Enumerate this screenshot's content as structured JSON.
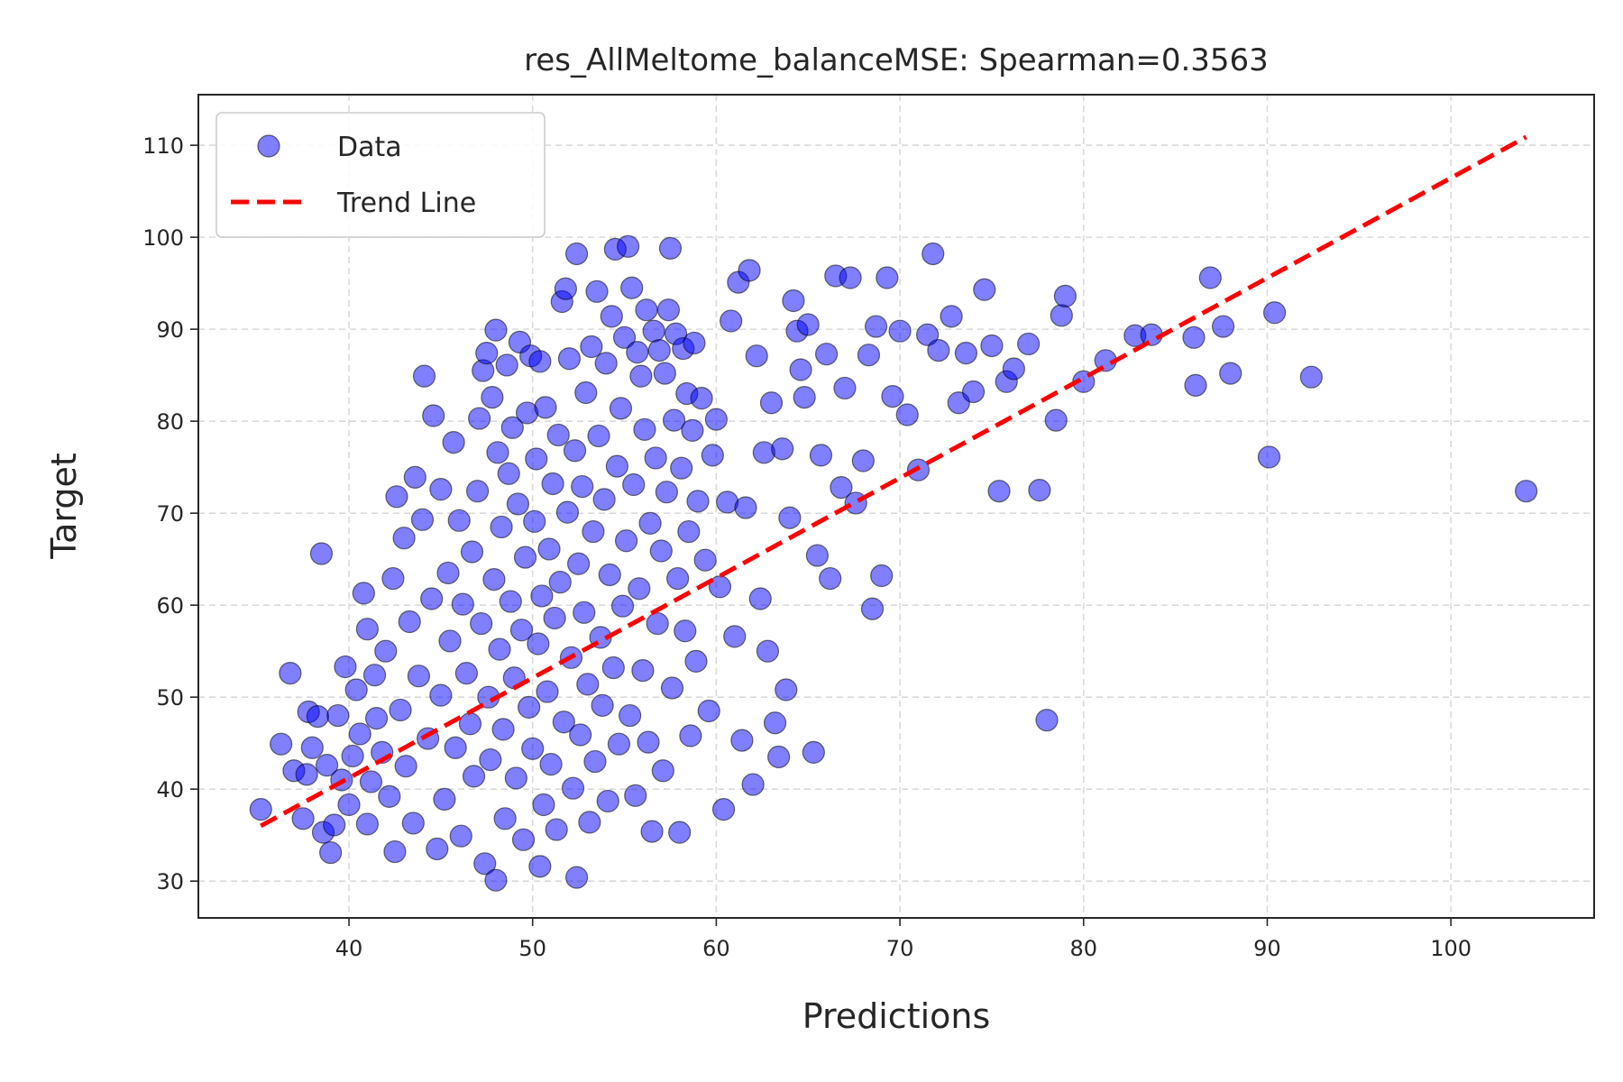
{
  "chart_data": {
    "type": "scatter",
    "title": "res_AllMeltome_balanceMSE: Spearman=0.3563",
    "xlabel": "Predictions",
    "ylabel": "Target",
    "xlim": [
      31.8,
      107.8
    ],
    "ylim": [
      26.0,
      115.5
    ],
    "xticks": [
      40,
      50,
      60,
      70,
      80,
      90,
      100
    ],
    "yticks": [
      30,
      40,
      50,
      60,
      70,
      80,
      90,
      100,
      110
    ],
    "grid": true,
    "legend_position": "top-left",
    "legend": [
      {
        "label": "Data",
        "kind": "marker"
      },
      {
        "label": "Trend Line",
        "kind": "dashed-line"
      }
    ],
    "colors": {
      "points": "#0000ff",
      "point_edge": "#000000",
      "trend": "#ff0000"
    },
    "trend_line": {
      "x": [
        35.2,
        104.1
      ],
      "y": [
        36.0,
        110.9
      ]
    },
    "series": [
      {
        "name": "Data",
        "points": [
          [
            35.2,
            37.8
          ],
          [
            36.3,
            44.9
          ],
          [
            36.8,
            52.6
          ],
          [
            37.0,
            42.0
          ],
          [
            37.5,
            36.8
          ],
          [
            37.7,
            41.6
          ],
          [
            37.8,
            48.4
          ],
          [
            38.0,
            44.5
          ],
          [
            38.3,
            47.9
          ],
          [
            38.5,
            65.6
          ],
          [
            38.6,
            35.3
          ],
          [
            38.8,
            42.6
          ],
          [
            39.0,
            33.1
          ],
          [
            39.2,
            36.1
          ],
          [
            39.4,
            48.0
          ],
          [
            39.6,
            41.0
          ],
          [
            39.8,
            53.3
          ],
          [
            40.0,
            38.3
          ],
          [
            40.2,
            43.6
          ],
          [
            40.4,
            50.8
          ],
          [
            40.6,
            46.0
          ],
          [
            40.8,
            61.3
          ],
          [
            41.0,
            36.2
          ],
          [
            41.0,
            57.4
          ],
          [
            41.2,
            40.8
          ],
          [
            41.4,
            52.4
          ],
          [
            41.5,
            47.7
          ],
          [
            41.8,
            44.0
          ],
          [
            42.0,
            55.0
          ],
          [
            42.2,
            39.2
          ],
          [
            42.4,
            62.9
          ],
          [
            42.5,
            33.2
          ],
          [
            42.6,
            71.8
          ],
          [
            42.8,
            48.6
          ],
          [
            43.0,
            67.3
          ],
          [
            43.1,
            42.5
          ],
          [
            43.3,
            58.2
          ],
          [
            43.5,
            36.3
          ],
          [
            43.6,
            73.9
          ],
          [
            43.8,
            52.3
          ],
          [
            44.0,
            69.3
          ],
          [
            44.1,
            84.9
          ],
          [
            44.3,
            45.5
          ],
          [
            44.5,
            60.7
          ],
          [
            44.6,
            80.6
          ],
          [
            44.8,
            33.5
          ],
          [
            45.0,
            72.6
          ],
          [
            45.0,
            50.2
          ],
          [
            45.2,
            38.9
          ],
          [
            45.4,
            63.5
          ],
          [
            45.5,
            56.1
          ],
          [
            45.7,
            77.7
          ],
          [
            45.8,
            44.5
          ],
          [
            46.0,
            69.2
          ],
          [
            46.1,
            34.9
          ],
          [
            46.2,
            60.1
          ],
          [
            46.4,
            52.6
          ],
          [
            46.6,
            47.1
          ],
          [
            46.7,
            65.8
          ],
          [
            46.8,
            41.4
          ],
          [
            47.0,
            72.4
          ],
          [
            47.1,
            80.3
          ],
          [
            47.2,
            58.0
          ],
          [
            47.3,
            85.5
          ],
          [
            47.4,
            31.9
          ],
          [
            47.5,
            87.4
          ],
          [
            47.6,
            50.0
          ],
          [
            47.7,
            43.2
          ],
          [
            47.8,
            82.6
          ],
          [
            47.9,
            62.8
          ],
          [
            48.0,
            89.9
          ],
          [
            48.0,
            30.1
          ],
          [
            48.1,
            76.6
          ],
          [
            48.2,
            55.2
          ],
          [
            48.3,
            68.5
          ],
          [
            48.4,
            46.5
          ],
          [
            48.5,
            36.8
          ],
          [
            48.6,
            86.1
          ],
          [
            48.7,
            74.3
          ],
          [
            48.8,
            60.4
          ],
          [
            48.9,
            79.3
          ],
          [
            49.0,
            52.1
          ],
          [
            49.1,
            41.2
          ],
          [
            49.2,
            71.0
          ],
          [
            49.3,
            88.6
          ],
          [
            49.4,
            57.3
          ],
          [
            49.5,
            34.5
          ],
          [
            49.6,
            65.2
          ],
          [
            49.7,
            80.9
          ],
          [
            49.8,
            48.9
          ],
          [
            49.9,
            87.1
          ],
          [
            50.0,
            44.4
          ],
          [
            50.1,
            69.1
          ],
          [
            50.2,
            75.9
          ],
          [
            50.3,
            55.8
          ],
          [
            50.4,
            31.6
          ],
          [
            50.4,
            86.5
          ],
          [
            50.5,
            61.0
          ],
          [
            50.6,
            38.3
          ],
          [
            50.7,
            81.5
          ],
          [
            50.8,
            50.6
          ],
          [
            50.9,
            66.1
          ],
          [
            51.0,
            42.7
          ],
          [
            51.1,
            73.2
          ],
          [
            51.2,
            58.6
          ],
          [
            51.3,
            35.6
          ],
          [
            51.4,
            78.5
          ],
          [
            51.5,
            62.5
          ],
          [
            51.6,
            93.0
          ],
          [
            51.7,
            47.3
          ],
          [
            51.8,
            94.4
          ],
          [
            51.9,
            70.1
          ],
          [
            52.0,
            86.8
          ],
          [
            52.1,
            54.3
          ],
          [
            52.2,
            40.1
          ],
          [
            52.3,
            76.8
          ],
          [
            52.4,
            98.2
          ],
          [
            52.4,
            30.4
          ],
          [
            52.5,
            64.5
          ],
          [
            52.6,
            45.9
          ],
          [
            52.7,
            72.9
          ],
          [
            52.8,
            59.2
          ],
          [
            52.9,
            83.1
          ],
          [
            53.0,
            51.4
          ],
          [
            53.1,
            36.4
          ],
          [
            53.2,
            88.1
          ],
          [
            53.3,
            68.0
          ],
          [
            53.4,
            43.0
          ],
          [
            53.5,
            94.1
          ],
          [
            53.6,
            78.4
          ],
          [
            53.7,
            56.5
          ],
          [
            53.8,
            49.1
          ],
          [
            53.9,
            71.5
          ],
          [
            54.0,
            86.3
          ],
          [
            54.1,
            38.7
          ],
          [
            54.2,
            63.3
          ],
          [
            54.3,
            91.4
          ],
          [
            54.4,
            53.2
          ],
          [
            54.5,
            98.7
          ],
          [
            54.6,
            75.1
          ],
          [
            54.7,
            44.9
          ],
          [
            54.8,
            81.4
          ],
          [
            54.9,
            59.9
          ],
          [
            55.0,
            89.1
          ],
          [
            55.1,
            67.0
          ],
          [
            55.2,
            99.0
          ],
          [
            55.3,
            48.0
          ],
          [
            55.4,
            94.5
          ],
          [
            55.5,
            73.1
          ],
          [
            55.6,
            39.3
          ],
          [
            55.7,
            87.5
          ],
          [
            55.8,
            61.8
          ],
          [
            55.9,
            84.9
          ],
          [
            56.0,
            52.9
          ],
          [
            56.1,
            79.1
          ],
          [
            56.2,
            92.1
          ],
          [
            56.3,
            45.1
          ],
          [
            56.4,
            68.9
          ],
          [
            56.5,
            35.4
          ],
          [
            56.6,
            89.8
          ],
          [
            56.7,
            76.0
          ],
          [
            56.8,
            58.0
          ],
          [
            56.9,
            87.7
          ],
          [
            57.0,
            65.9
          ],
          [
            57.1,
            42.0
          ],
          [
            57.2,
            85.2
          ],
          [
            57.3,
            72.3
          ],
          [
            57.4,
            92.1
          ],
          [
            57.5,
            98.8
          ],
          [
            57.6,
            51.0
          ],
          [
            57.7,
            80.1
          ],
          [
            57.8,
            89.5
          ],
          [
            57.9,
            62.9
          ],
          [
            58.0,
            35.3
          ],
          [
            58.1,
            74.9
          ],
          [
            58.2,
            87.9
          ],
          [
            58.3,
            57.2
          ],
          [
            58.4,
            83.0
          ],
          [
            58.5,
            68.0
          ],
          [
            58.6,
            45.8
          ],
          [
            58.7,
            79.0
          ],
          [
            58.8,
            88.5
          ],
          [
            58.9,
            53.9
          ],
          [
            59.0,
            71.3
          ],
          [
            59.2,
            82.5
          ],
          [
            59.4,
            64.9
          ],
          [
            59.6,
            48.5
          ],
          [
            59.8,
            76.3
          ],
          [
            60.0,
            80.2
          ],
          [
            60.2,
            62.0
          ],
          [
            60.4,
            37.8
          ],
          [
            60.6,
            71.2
          ],
          [
            60.8,
            90.9
          ],
          [
            61.0,
            56.6
          ],
          [
            61.2,
            95.1
          ],
          [
            61.4,
            45.3
          ],
          [
            61.6,
            70.6
          ],
          [
            61.8,
            96.4
          ],
          [
            62.0,
            40.5
          ],
          [
            62.2,
            87.1
          ],
          [
            62.4,
            60.7
          ],
          [
            62.6,
            76.6
          ],
          [
            62.8,
            55.0
          ],
          [
            63.0,
            82.0
          ],
          [
            63.2,
            47.2
          ],
          [
            63.4,
            43.5
          ],
          [
            63.6,
            77.0
          ],
          [
            63.8,
            50.8
          ],
          [
            64.0,
            69.5
          ],
          [
            64.2,
            93.1
          ],
          [
            64.4,
            89.8
          ],
          [
            64.6,
            85.6
          ],
          [
            64.8,
            82.6
          ],
          [
            65.0,
            90.5
          ],
          [
            65.3,
            44.0
          ],
          [
            65.5,
            65.4
          ],
          [
            65.7,
            76.3
          ],
          [
            66.0,
            87.3
          ],
          [
            66.2,
            62.9
          ],
          [
            66.5,
            95.8
          ],
          [
            66.8,
            72.8
          ],
          [
            67.0,
            83.6
          ],
          [
            67.3,
            95.6
          ],
          [
            67.6,
            71.1
          ],
          [
            68.0,
            75.7
          ],
          [
            68.3,
            87.2
          ],
          [
            68.5,
            59.6
          ],
          [
            68.7,
            90.3
          ],
          [
            69.0,
            63.2
          ],
          [
            69.3,
            95.6
          ],
          [
            69.6,
            82.7
          ],
          [
            70.0,
            89.8
          ],
          [
            70.4,
            80.7
          ],
          [
            71.0,
            74.7
          ],
          [
            71.5,
            89.4
          ],
          [
            71.8,
            98.2
          ],
          [
            72.1,
            87.7
          ],
          [
            72.8,
            91.4
          ],
          [
            73.2,
            82.0
          ],
          [
            73.6,
            87.4
          ],
          [
            74.0,
            83.2
          ],
          [
            74.6,
            94.3
          ],
          [
            75.0,
            88.2
          ],
          [
            75.4,
            72.4
          ],
          [
            75.8,
            84.3
          ],
          [
            76.2,
            85.7
          ],
          [
            77.0,
            88.4
          ],
          [
            77.6,
            72.5
          ],
          [
            78.0,
            47.5
          ],
          [
            78.5,
            80.1
          ],
          [
            78.8,
            91.5
          ],
          [
            79.0,
            93.6
          ],
          [
            80.0,
            84.3
          ],
          [
            81.2,
            86.6
          ],
          [
            82.8,
            89.3
          ],
          [
            83.7,
            89.4
          ],
          [
            86.0,
            89.1
          ],
          [
            86.1,
            83.9
          ],
          [
            86.9,
            95.6
          ],
          [
            87.6,
            90.3
          ],
          [
            88.0,
            85.2
          ],
          [
            90.1,
            76.1
          ],
          [
            90.4,
            91.8
          ],
          [
            92.4,
            84.8
          ],
          [
            104.1,
            72.4
          ]
        ]
      }
    ]
  }
}
